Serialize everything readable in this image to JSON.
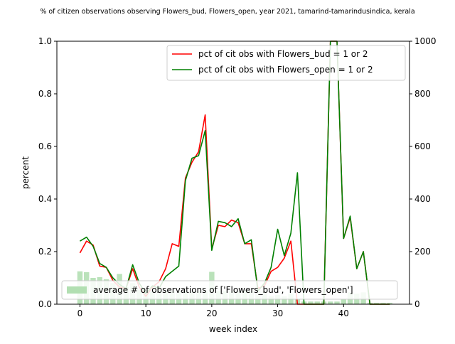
{
  "chart_data": {
    "type": "line",
    "title": "% of citizen observations observing Flowers_bud, Flowers_open, year 2021, tamarind-tamarindusindica, kerala",
    "xlabel": "week index",
    "ylabel": "percent",
    "xlim": [
      -3.5,
      50
    ],
    "ylim": [
      0,
      1.0
    ],
    "y2lim": [
      0,
      1000
    ],
    "x_ticks": [
      0,
      10,
      20,
      30,
      40
    ],
    "y_ticks": [
      0.0,
      0.2,
      0.4,
      0.6,
      0.8,
      1.0
    ],
    "y2_ticks": [
      0,
      200,
      400,
      600,
      800,
      1000
    ],
    "grid": false,
    "legend_top_placement": "upper right",
    "legend_bottom_placement": "lower left",
    "series": [
      {
        "name": "pct of cit obs with Flowers_bud = 1 or 2",
        "color": "#ff0000",
        "x": [
          0,
          1,
          2,
          3,
          4,
          5,
          6,
          7,
          8,
          9,
          10,
          11,
          12,
          13,
          14,
          15,
          16,
          17,
          18,
          19,
          20,
          21,
          22,
          23,
          24,
          25,
          26,
          27,
          28,
          29,
          30,
          31,
          32,
          33,
          34,
          35,
          36,
          37,
          38,
          39,
          40,
          41,
          42,
          43,
          44,
          45,
          46,
          47
        ],
        "values": [
          0.195,
          0.24,
          0.225,
          0.145,
          0.14,
          0.09,
          0.065,
          0.06,
          0.135,
          0.065,
          0.03,
          0.065,
          0.085,
          0.135,
          0.23,
          0.22,
          0.48,
          0.54,
          0.58,
          0.72,
          0.21,
          0.3,
          0.295,
          0.32,
          0.31,
          0.23,
          0.23,
          0.06,
          0.07,
          0.125,
          0.14,
          0.175,
          0.24,
          0.0,
          0.0,
          0.0,
          0.0,
          0.0,
          1.0,
          1.0,
          0.25,
          0.33,
          0.135,
          0.2,
          0.0,
          0.0,
          0.0,
          0.0
        ]
      },
      {
        "name": "pct of cit obs with Flowers_open = 1 or 2",
        "color": "#008000",
        "x": [
          0,
          1,
          2,
          3,
          4,
          5,
          6,
          7,
          8,
          9,
          10,
          11,
          12,
          13,
          14,
          15,
          16,
          17,
          18,
          19,
          20,
          21,
          22,
          23,
          24,
          25,
          26,
          27,
          28,
          29,
          30,
          31,
          32,
          33,
          34,
          35,
          36,
          37,
          38,
          39,
          40,
          41,
          42,
          43,
          44,
          45,
          46,
          47
        ],
        "values": [
          0.24,
          0.255,
          0.22,
          0.155,
          0.14,
          0.1,
          0.075,
          0.06,
          0.15,
          0.08,
          0.04,
          0.07,
          0.06,
          0.105,
          0.125,
          0.145,
          0.47,
          0.555,
          0.565,
          0.66,
          0.205,
          0.315,
          0.31,
          0.295,
          0.325,
          0.23,
          0.245,
          0.05,
          0.08,
          0.14,
          0.285,
          0.185,
          0.27,
          0.5,
          0.0,
          0.0,
          0.0,
          0.0,
          1.0,
          1.0,
          0.25,
          0.335,
          0.135,
          0.2,
          0.0,
          0.0,
          0.0,
          0.0
        ]
      }
    ],
    "bars": {
      "name": "average # of observations of ['Flowers_bud', 'Flowers_open']",
      "color": "#b2dfb2",
      "x": [
        0,
        1,
        2,
        3,
        4,
        5,
        6,
        7,
        8,
        9,
        10,
        11,
        12,
        13,
        14,
        15,
        16,
        17,
        18,
        19,
        20,
        21,
        22,
        23,
        24,
        25,
        26,
        27,
        28,
        29,
        30,
        31,
        32,
        33,
        34,
        35,
        36,
        37,
        38,
        39,
        40,
        41,
        42,
        43,
        44,
        45,
        46,
        47
      ],
      "values": [
        125,
        122,
        100,
        103,
        95,
        80,
        115,
        65,
        80,
        55,
        55,
        50,
        55,
        50,
        50,
        50,
        50,
        50,
        50,
        50,
        123,
        50,
        50,
        50,
        50,
        50,
        50,
        50,
        50,
        30,
        35,
        30,
        40,
        20,
        10,
        10,
        10,
        10,
        10,
        10,
        20,
        45,
        40,
        45,
        5,
        5,
        5,
        5
      ]
    }
  }
}
